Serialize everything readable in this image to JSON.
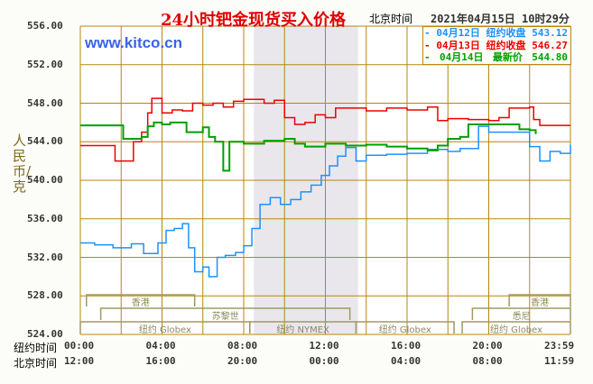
{
  "header": {
    "title": "24小时钯金现货买入价格",
    "timezone_label": "北京时间",
    "datetime": "2021年04月15日 10时29分",
    "logo": "www.kitco.cn"
  },
  "chart_data": {
    "type": "line",
    "title": "24小时钯金现货买入价格",
    "ylabel": "人民币/克",
    "ylim": [
      524,
      556
    ],
    "yticks": [
      "556.00",
      "552.00",
      "548.00",
      "544.00",
      "540.00",
      "536.00",
      "532.00",
      "528.00",
      "524.00"
    ],
    "xlim": [
      0,
      24
    ],
    "x_rows": [
      {
        "label": "纽约时间",
        "ticks": [
          "00:00",
          "04:00",
          "08:00",
          "12:00",
          "16:00",
          "20:00",
          "23:59"
        ]
      },
      {
        "label": "北京时间",
        "ticks": [
          "12:00",
          "16:00",
          "20:00",
          "00:00",
          "04:00",
          "08:00",
          "11:59"
        ]
      }
    ],
    "grid": true,
    "legend_position": "top-right",
    "series": [
      {
        "name": "04月12日",
        "kind": "纽约收盘",
        "value": "543.12",
        "color": "#1e90ff",
        "points": [
          [
            0,
            533.5
          ],
          [
            0.7,
            533.3
          ],
          [
            1.6,
            533
          ],
          [
            2.5,
            533.4
          ],
          [
            3.1,
            532.4
          ],
          [
            3.8,
            533.5
          ],
          [
            4.2,
            534.8
          ],
          [
            4.6,
            535
          ],
          [
            5,
            535.5
          ],
          [
            5.3,
            533
          ],
          [
            5.6,
            530.5
          ],
          [
            6,
            531
          ],
          [
            6.3,
            530
          ],
          [
            6.7,
            532
          ],
          [
            7.1,
            532.2
          ],
          [
            7.6,
            532.5
          ],
          [
            8,
            533.2
          ],
          [
            8.4,
            535
          ],
          [
            8.8,
            537.5
          ],
          [
            9.3,
            538.2
          ],
          [
            9.8,
            537.5
          ],
          [
            10.3,
            538
          ],
          [
            10.8,
            538.8
          ],
          [
            11.3,
            539.5
          ],
          [
            11.8,
            540.5
          ],
          [
            12.2,
            541.5
          ],
          [
            12.6,
            542.5
          ],
          [
            13,
            543.4
          ],
          [
            13.5,
            542
          ],
          [
            14,
            542.6
          ],
          [
            15,
            542.7
          ],
          [
            16,
            542.8
          ],
          [
            17,
            543.2
          ],
          [
            18,
            543
          ],
          [
            18.6,
            543.3
          ],
          [
            19.2,
            543.3
          ],
          [
            19.5,
            545.6
          ],
          [
            20,
            545
          ],
          [
            21,
            545
          ],
          [
            21.5,
            545
          ],
          [
            22,
            543.5
          ],
          [
            22.5,
            542
          ],
          [
            23,
            543
          ],
          [
            23.5,
            542.8
          ],
          [
            24,
            543.7
          ]
        ]
      },
      {
        "name": "04月13日",
        "kind": "纽约收盘",
        "value": "546.27",
        "color": "#ee0000",
        "points": [
          [
            0,
            543.6
          ],
          [
            1,
            543.6
          ],
          [
            1.5,
            543.6
          ],
          [
            1.7,
            542
          ],
          [
            2.5,
            542
          ],
          [
            2.6,
            544
          ],
          [
            3,
            545
          ],
          [
            3.3,
            547
          ],
          [
            3.5,
            548.5
          ],
          [
            4,
            547
          ],
          [
            4.5,
            547.3
          ],
          [
            5,
            547.2
          ],
          [
            5.5,
            548
          ],
          [
            6,
            547.8
          ],
          [
            6.5,
            548
          ],
          [
            7,
            547.6
          ],
          [
            7.5,
            548.2
          ],
          [
            8,
            548.4
          ],
          [
            9,
            548
          ],
          [
            9.5,
            548.3
          ],
          [
            10,
            546.5
          ],
          [
            10.5,
            545.8
          ],
          [
            11,
            546
          ],
          [
            11.5,
            546.8
          ],
          [
            12,
            546.5
          ],
          [
            12.5,
            547.5
          ],
          [
            13.5,
            547.5
          ],
          [
            14,
            547.2
          ],
          [
            15,
            547.5
          ],
          [
            16,
            547.3
          ],
          [
            17,
            547.6
          ],
          [
            17.5,
            546.2
          ],
          [
            18,
            546.4
          ],
          [
            19,
            546.3
          ],
          [
            20,
            546.2
          ],
          [
            20.5,
            546.5
          ],
          [
            21,
            547.5
          ],
          [
            22,
            547.6
          ],
          [
            22.2,
            546.3
          ],
          [
            22.5,
            545.7
          ],
          [
            24,
            545.7
          ]
        ]
      },
      {
        "name": "04月14日",
        "kind": "最新价",
        "value": "544.80",
        "color": "#00a000",
        "points": [
          [
            0,
            545.7
          ],
          [
            1,
            545.7
          ],
          [
            2,
            545.7
          ],
          [
            2.1,
            544.3
          ],
          [
            3,
            544.5
          ],
          [
            3.3,
            545.6
          ],
          [
            3.6,
            546
          ],
          [
            4,
            545.8
          ],
          [
            4.4,
            546
          ],
          [
            4.8,
            546
          ],
          [
            5.2,
            545
          ],
          [
            5.5,
            545
          ],
          [
            6,
            545.5
          ],
          [
            6.3,
            544.5
          ],
          [
            6.6,
            544
          ],
          [
            7,
            541
          ],
          [
            7.3,
            544
          ],
          [
            8,
            543.8
          ],
          [
            9,
            544.1
          ],
          [
            10,
            544.3
          ],
          [
            10.5,
            543.8
          ],
          [
            11,
            543.5
          ],
          [
            12,
            543.8
          ],
          [
            13,
            543.6
          ],
          [
            14,
            543.7
          ],
          [
            15,
            543.5
          ],
          [
            16,
            543.3
          ],
          [
            17,
            543.1
          ],
          [
            17.5,
            543.6
          ],
          [
            18,
            544.3
          ],
          [
            18.6,
            544.5
          ],
          [
            19,
            545.8
          ],
          [
            20,
            545.8
          ],
          [
            21,
            545.8
          ],
          [
            21.5,
            545.3
          ],
          [
            22,
            545.2
          ],
          [
            22.3,
            544.8
          ]
        ]
      }
    ],
    "sessions": [
      {
        "label": "香港",
        "row": 0,
        "start": 0.3,
        "end": 5.6
      },
      {
        "label": "香港",
        "row": 0,
        "start": 21,
        "end": 24
      },
      {
        "label": "苏黎世",
        "row": 1,
        "start": 1,
        "end": 13.2
      },
      {
        "label": "悉尼",
        "row": 1,
        "start": 19.2,
        "end": 24
      },
      {
        "label": "纽约 Globex",
        "row": 2,
        "start": 0,
        "end": 8.3
      },
      {
        "label": "纽约 NYMEX",
        "row": 2,
        "start": 8.3,
        "end": 13.5
      },
      {
        "label": "纽约 Globex",
        "row": 2,
        "start": 13.5,
        "end": 18.3
      },
      {
        "label": "纽约 Globex",
        "row": 2,
        "start": 18.7,
        "end": 24
      }
    ],
    "shaded_range": [
      8.5,
      13.6
    ]
  }
}
